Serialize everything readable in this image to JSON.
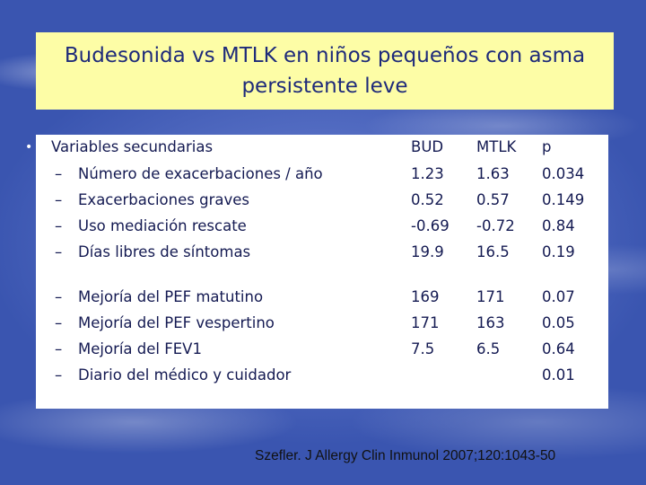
{
  "slide": {
    "title_line1": "Budesonida vs MTLK en niños pequeños con asma",
    "title_line2": "persistente leve",
    "header": {
      "label": "Variables secundarias",
      "col_bud": "BUD",
      "col_mtlk": "MTLK",
      "col_p": "p"
    },
    "group1": [
      {
        "dash": "–",
        "label": "Número de exacerbaciones / año",
        "bud": "1.23",
        "mtlk": "1.63",
        "p": "0.034"
      },
      {
        "dash": "–",
        "label": "Exacerbaciones graves",
        "bud": "0.52",
        "mtlk": "0.57",
        "p": "0.149"
      },
      {
        "dash": "–",
        "label": "Uso mediación rescate",
        "bud": "-0.69",
        "mtlk": "-0.72",
        "p": "0.84"
      },
      {
        "dash": "–",
        "label": "Días libres de síntomas",
        "bud": "19.9",
        "mtlk": "16.5",
        "p": "0.19"
      }
    ],
    "group2": [
      {
        "dash": "–",
        "label": "Mejoría del PEF matutino",
        "bud": "169",
        "mtlk": "171",
        "p": "0.07"
      },
      {
        "dash": "–",
        "label": "Mejoría del PEF vespertino",
        "bud": "171",
        "mtlk": "163",
        "p": "0.05"
      },
      {
        "dash": "–",
        "label": "Mejoría del FEV1",
        "bud": "7.5",
        "mtlk": "6.5",
        "p": "0.64"
      },
      {
        "dash": "–",
        "label": "Diario del médico y cuidador",
        "bud": "",
        "mtlk": "",
        "p": "0.01"
      }
    ],
    "citation": "Szefler. J Allergy Clin Inmunol 2007;120:1043-50",
    "colors": {
      "title_bg": "#fdfda6",
      "title_text": "#1e2a7a",
      "body_text": "#141a52",
      "background": "#3d57b3"
    }
  }
}
